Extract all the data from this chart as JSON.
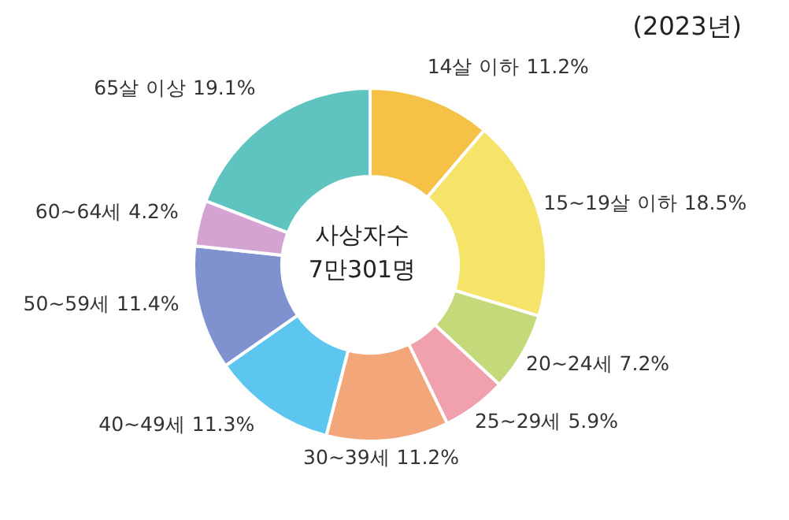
{
  "chart_data": {
    "type": "donut",
    "title": "(2023년)",
    "categories": [
      "14살 이하",
      "15~19살 이하",
      "20~24세",
      "25~29세",
      "30~39세",
      "40~49세",
      "50~59세",
      "60~64세",
      "65살 이상"
    ],
    "values": [
      11.2,
      18.5,
      7.2,
      5.9,
      11.2,
      11.3,
      11.4,
      4.2,
      19.1
    ],
    "value_labels": [
      "11.2%",
      "18.5%",
      "7.2%",
      "5.9%",
      "11.2%",
      "11.3%",
      "11.4%",
      "4.2%",
      "19.1%"
    ],
    "colors": [
      "#f5c146",
      "#f6e36a",
      "#c3d97a",
      "#f0a1ad",
      "#f2a679",
      "#5cc6ee",
      "#7f91cf",
      "#d4a3d1",
      "#5fc3bf"
    ],
    "annotations": [
      "사상자수",
      "7만301명"
    ]
  }
}
